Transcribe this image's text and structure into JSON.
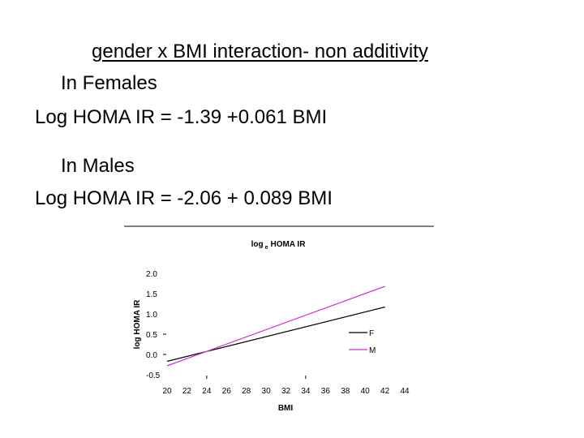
{
  "slide": {
    "title": "gender x BMI interaction- non additivity",
    "females_label": "In Females",
    "females_equation": "Log HOMA IR = -1.39 +0.061 BMI",
    "males_label": "In Males",
    "males_equation": "Log HOMA IR = -2.06 + 0.089 BMI"
  },
  "chart_data": {
    "type": "line",
    "title_main": "log",
    "title_sub": "e",
    "title_rest": "HOMA IR",
    "xlabel": "BMI",
    "ylabel": "log HOMA IR",
    "x_ticks": [
      "20",
      "22",
      "24",
      "26",
      "28",
      "30",
      "32",
      "34",
      "36",
      "38",
      "40",
      "42",
      "44"
    ],
    "y_ticks": [
      "2.0",
      "1.5",
      "1.0",
      "0.5",
      "0.0",
      "-0.5"
    ],
    "xlim": [
      20,
      44
    ],
    "ylim": [
      -0.5,
      2.0
    ],
    "grid": false,
    "legend_position": "right",
    "series": [
      {
        "name": "F",
        "color": "#000000",
        "x": [
          20,
          42
        ],
        "y": [
          -0.17,
          1.17
        ]
      },
      {
        "name": "M",
        "color": "#cc33cc",
        "x": [
          20,
          42
        ],
        "y": [
          -0.28,
          1.68
        ]
      }
    ]
  }
}
